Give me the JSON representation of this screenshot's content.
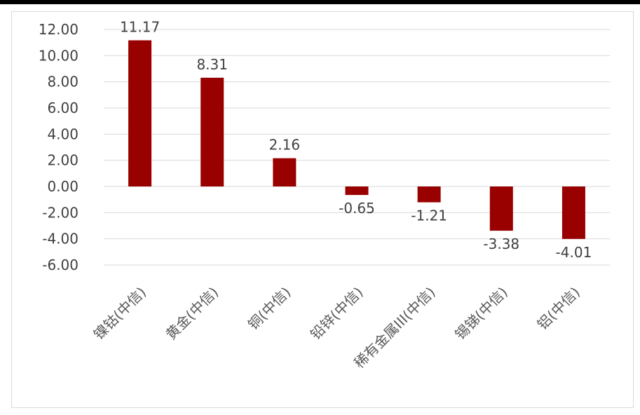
{
  "chart_data": {
    "type": "bar",
    "categories": [
      "镍钴(中信)",
      "黄金(中信)",
      "铜(中信)",
      "铅锌(中信)",
      "稀有金属III(中信)",
      "锡锑(中信)",
      "铝(中信)"
    ],
    "values": [
      11.17,
      8.31,
      2.16,
      -0.65,
      -1.21,
      -3.38,
      -4.01
    ],
    "data_labels": [
      "11.17",
      "8.31",
      "2.16",
      "-0.65",
      "-1.21",
      "-3.38",
      "-4.01"
    ],
    "y_ticks": [
      "12.00",
      "10.00",
      "8.00",
      "6.00",
      "4.00",
      "2.00",
      "0.00",
      "-2.00",
      "-4.00",
      "-6.00"
    ],
    "ylim": [
      -6,
      12
    ],
    "grid": true,
    "legend": "none",
    "title": "",
    "xlabel": "",
    "ylabel": "",
    "bar_color": "#990000",
    "grid_color": "#d9d9d9"
  }
}
